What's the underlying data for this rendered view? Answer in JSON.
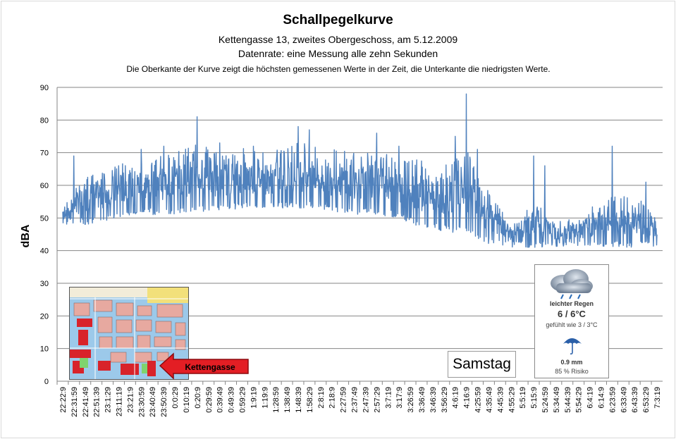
{
  "title": "Schallpegelkurve",
  "subtitle": "Kettengasse 13, zweites Obergeschoss, am 5.12.2009",
  "subtitle2": "Datenrate: eine Messung alle zehn Sekunden",
  "note": "Die Oberkante der Kurve zeigt die höchsten gemessenen Werte  in der Zeit, die Unterkante  die niedrigsten Werte.",
  "ylabel": "dBA",
  "day_label": "Samstag",
  "map_label": "Kettengasse",
  "weather": {
    "condition": "leichter Regen",
    "temp": "6 / 6°C",
    "feels": "gefühlt wie 3 / 3°C",
    "rain": "0.9 mm",
    "risk": "85 % Risiko"
  },
  "colors": {
    "line": "#4f81bd",
    "grid": "#868686",
    "arrow": "#e31e24"
  },
  "chart_data": {
    "type": "line",
    "title": "Schallpegelkurve",
    "ylabel": "dBA",
    "ylim": [
      0,
      90
    ],
    "yticks": [
      0,
      10,
      20,
      30,
      40,
      50,
      60,
      70,
      80,
      90
    ],
    "grid": true,
    "xtick_labels": [
      "22:22:9",
      "22:31:59",
      "22:41:49",
      "22:51:39",
      "23:1:29",
      "23:11:19",
      "23:21:9",
      "23:30:59",
      "23:40:49",
      "23:50:39",
      "0:0:29",
      "0:10:19",
      "0:20:9",
      "0:29:59",
      "0:39:49",
      "0:49:39",
      "0:59:29",
      "1:9:19",
      "1:19:9",
      "1:28:59",
      "1:38:49",
      "1:48:39",
      "1:58:29",
      "2:8:19",
      "2:18:9",
      "2:27:59",
      "2:37:49",
      "2:47:39",
      "2:57:29",
      "3:7:19",
      "3:17:9",
      "3:26:59",
      "3:36:49",
      "3:46:39",
      "3:56:29",
      "4:6:19",
      "4:16:9",
      "4:25:59",
      "4:35:49",
      "4:45:39",
      "4:55:29",
      "5:5:19",
      "5:15:9",
      "5:24:59",
      "5:34:49",
      "5:44:39",
      "5:54:29",
      "6:4:19",
      "6:14:9",
      "6:23:59",
      "6:33:49",
      "6:43:39",
      "6:53:29",
      "7:3:19"
    ],
    "series": [
      {
        "envelope_x": [
          "22:22:9",
          "22:41:49",
          "23:1:29",
          "23:21:9",
          "23:40:49",
          "0:0:29",
          "0:20:9",
          "0:39:49",
          "0:59:29",
          "1:19:9",
          "1:38:49",
          "1:58:29",
          "2:18:9",
          "2:37:49",
          "2:57:29",
          "3:17:9",
          "3:36:49",
          "3:56:29",
          "4:16:9",
          "4:35:49",
          "4:55:29",
          "5:15:9",
          "5:34:49",
          "5:54:29",
          "6:14:9",
          "6:33:49",
          "6:53:29",
          "7:3:19"
        ],
        "upper": [
          55,
          63,
          66,
          68,
          69,
          70,
          73,
          70,
          72,
          70,
          72,
          74,
          71,
          70,
          70,
          69,
          68,
          66,
          72,
          58,
          49,
          55,
          50,
          50,
          56,
          57,
          55,
          52
        ],
        "lower": [
          48,
          48,
          49,
          51,
          51,
          51,
          52,
          52,
          53,
          53,
          53,
          53,
          52,
          51,
          51,
          50,
          47,
          46,
          45,
          42,
          41,
          41,
          41,
          41,
          41,
          41,
          41,
          41
        ],
        "peaks": [
          {
            "x": "22:31:59",
            "y": 69
          },
          {
            "x": "23:11:19",
            "y": 66
          },
          {
            "x": "23:30:59",
            "y": 71
          },
          {
            "x": "23:50:39",
            "y": 72
          },
          {
            "x": "0:20:9",
            "y": 81
          },
          {
            "x": "0:39:49",
            "y": 73
          },
          {
            "x": "1:9:19",
            "y": 72
          },
          {
            "x": "1:48:39",
            "y": 78
          },
          {
            "x": "1:58:29",
            "y": 77
          },
          {
            "x": "2:57:29",
            "y": 76
          },
          {
            "x": "3:17:9",
            "y": 72
          },
          {
            "x": "4:6:19",
            "y": 75
          },
          {
            "x": "4:16:9",
            "y": 88
          },
          {
            "x": "4:25:59",
            "y": 71
          },
          {
            "x": "5:15:9",
            "y": 69
          },
          {
            "x": "5:24:59",
            "y": 66
          },
          {
            "x": "6:23:59",
            "y": 72
          },
          {
            "x": "6:53:29",
            "y": 61
          }
        ]
      }
    ]
  }
}
